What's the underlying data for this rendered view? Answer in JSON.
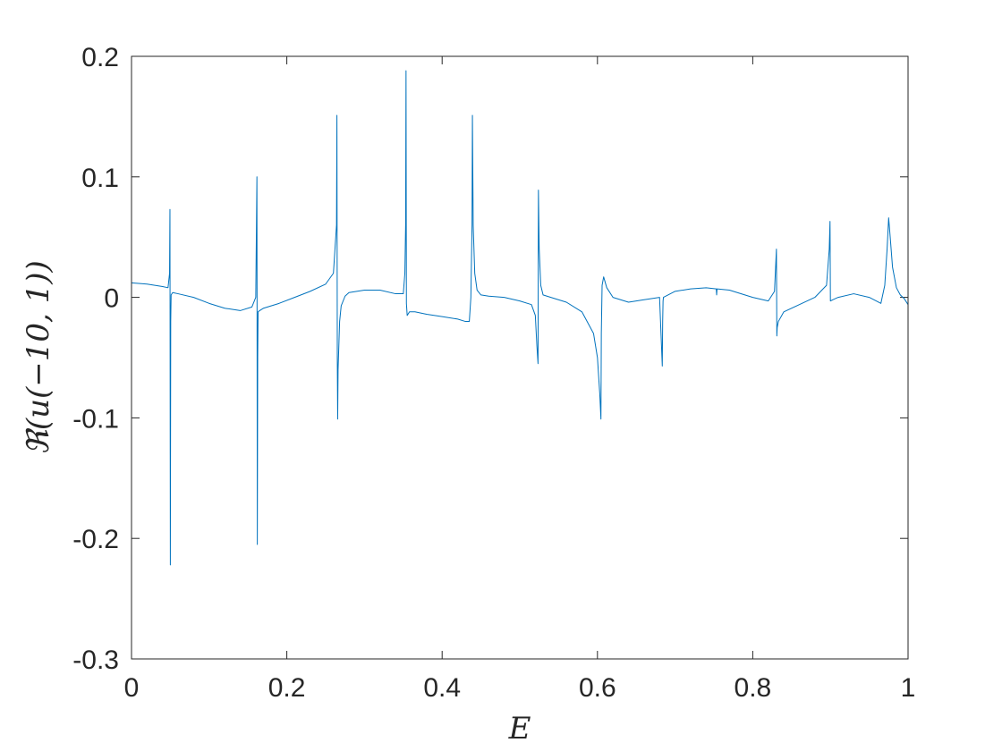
{
  "chart_data": {
    "type": "line",
    "title": "",
    "xlabel": "E",
    "ylabel": "ℜ(u(−10, 1))",
    "xlim": [
      0,
      1
    ],
    "ylim": [
      -0.3,
      0.2
    ],
    "grid": false,
    "line_color": "#0072BD",
    "xticks": [
      0,
      0.2,
      0.4,
      0.6,
      0.8,
      1
    ],
    "xtick_labels": [
      "0",
      "0.2",
      "0.4",
      "0.6",
      "0.8",
      "1"
    ],
    "yticks": [
      0.2,
      0.1,
      0,
      -0.1,
      -0.2,
      -0.3
    ],
    "ytick_labels": [
      "0.2",
      "0.1",
      "0",
      "-0.1",
      "-0.2",
      "-0.3"
    ],
    "series": [
      {
        "x": [
          0.0,
          0.02,
          0.04,
          0.047,
          0.049,
          0.0495,
          0.05,
          0.0505,
          0.051,
          0.053,
          0.06,
          0.08,
          0.1,
          0.12,
          0.14,
          0.155,
          0.16,
          0.1615,
          0.162,
          0.1625,
          0.163,
          0.165,
          0.17,
          0.19,
          0.21,
          0.23,
          0.25,
          0.26,
          0.264,
          0.2645,
          0.265,
          0.2655,
          0.266,
          0.268,
          0.27,
          0.275,
          0.28,
          0.3,
          0.32,
          0.34,
          0.35,
          0.352,
          0.353,
          0.3535,
          0.354,
          0.355,
          0.358,
          0.365,
          0.38,
          0.4,
          0.42,
          0.43,
          0.435,
          0.437,
          0.4385,
          0.439,
          0.44,
          0.442,
          0.445,
          0.45,
          0.46,
          0.48,
          0.5,
          0.515,
          0.52,
          0.522,
          0.5235,
          0.524,
          0.525,
          0.527,
          0.53,
          0.54,
          0.56,
          0.58,
          0.595,
          0.6,
          0.603,
          0.6045,
          0.605,
          0.606,
          0.608,
          0.612,
          0.62,
          0.64,
          0.66,
          0.68,
          0.6835,
          0.684,
          0.6845,
          0.685,
          0.7,
          0.72,
          0.74,
          0.753,
          0.7535,
          0.754,
          0.77,
          0.8,
          0.82,
          0.828,
          0.8305,
          0.831,
          0.8315,
          0.833,
          0.84,
          0.86,
          0.88,
          0.895,
          0.8985,
          0.8995,
          0.9,
          0.903,
          0.91,
          0.93,
          0.95,
          0.965,
          0.97,
          0.973,
          0.975,
          0.977,
          0.98,
          0.985,
          0.99,
          0.995,
          1.0
        ],
        "y": [
          0.012,
          0.011,
          0.009,
          0.008,
          0.02,
          0.073,
          -0.222,
          -0.02,
          0.002,
          0.004,
          0.003,
          0.0,
          -0.005,
          -0.009,
          -0.011,
          -0.008,
          0.0,
          0.1,
          -0.205,
          -0.05,
          -0.012,
          -0.011,
          -0.009,
          -0.005,
          0.0,
          0.005,
          0.011,
          0.02,
          0.06,
          0.151,
          -0.05,
          -0.101,
          -0.06,
          -0.02,
          -0.007,
          0.001,
          0.004,
          0.006,
          0.006,
          0.003,
          0.003,
          0.02,
          0.06,
          0.188,
          -0.005,
          -0.015,
          -0.012,
          -0.012,
          -0.014,
          -0.016,
          -0.018,
          -0.02,
          -0.02,
          0.0,
          0.06,
          0.151,
          0.06,
          0.02,
          0.006,
          0.002,
          0.001,
          0.0,
          -0.003,
          -0.006,
          -0.015,
          -0.04,
          -0.055,
          0.089,
          0.04,
          0.01,
          0.002,
          0.0,
          -0.004,
          -0.012,
          -0.03,
          -0.05,
          -0.08,
          -0.101,
          -0.03,
          0.01,
          0.017,
          0.008,
          0.0,
          -0.004,
          -0.002,
          0.0,
          -0.057,
          -0.02,
          -0.003,
          0.0,
          0.005,
          0.007,
          0.008,
          0.007,
          0.002,
          0.007,
          0.006,
          0.0,
          -0.003,
          0.005,
          0.04,
          -0.032,
          -0.025,
          -0.02,
          -0.012,
          -0.006,
          0.0,
          0.01,
          0.04,
          0.063,
          -0.003,
          -0.002,
          0.0,
          0.003,
          0.0,
          -0.005,
          0.01,
          0.04,
          0.066,
          0.05,
          0.025,
          0.008,
          0.002,
          -0.001,
          -0.006
        ]
      }
    ]
  }
}
